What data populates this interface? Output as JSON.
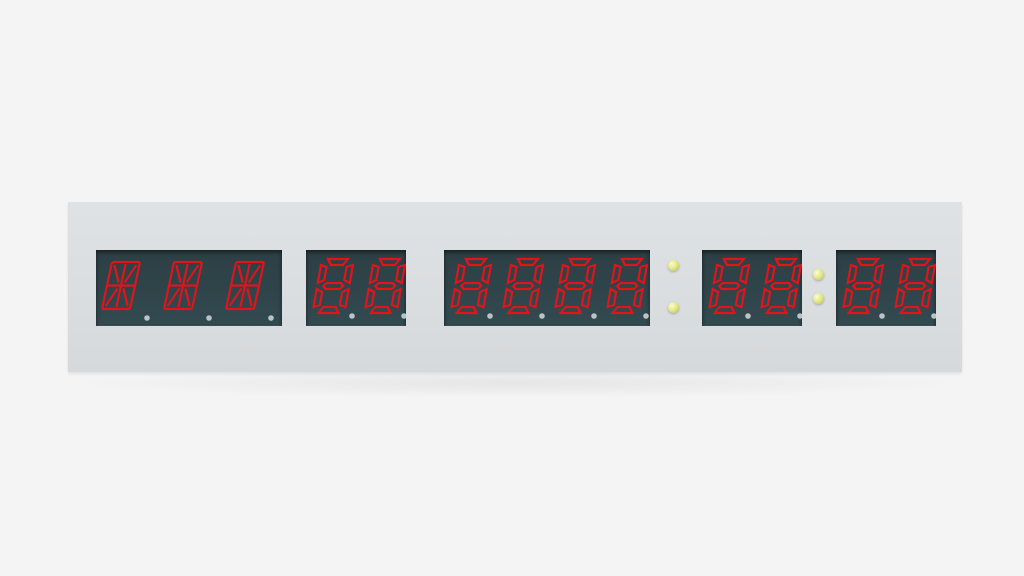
{
  "display": {
    "segment_on_color": "#e0141a",
    "segment_dim_color": "#3a4a4f",
    "dp_color": "#bcc3c6",
    "module_color": "#2f4449",
    "panel_color": "#dcdfe1",
    "led_color": "#e9ee94",
    "modules": [
      {
        "name": "alpha-module",
        "type": "14-segment",
        "digits": 3
      },
      {
        "name": "two-digit-module-a",
        "type": "7-segment",
        "digits": 2
      },
      {
        "name": "four-digit-module",
        "type": "7-segment",
        "digits": 4
      },
      {
        "name": "two-digit-module-b",
        "type": "7-segment",
        "digits": 2
      },
      {
        "name": "two-digit-module-c",
        "type": "7-segment",
        "digits": 2
      }
    ],
    "colon_separators": 2,
    "icons": [
      "colon-led-icon",
      "decimal-point-icon",
      "segment-digit-icon"
    ]
  }
}
